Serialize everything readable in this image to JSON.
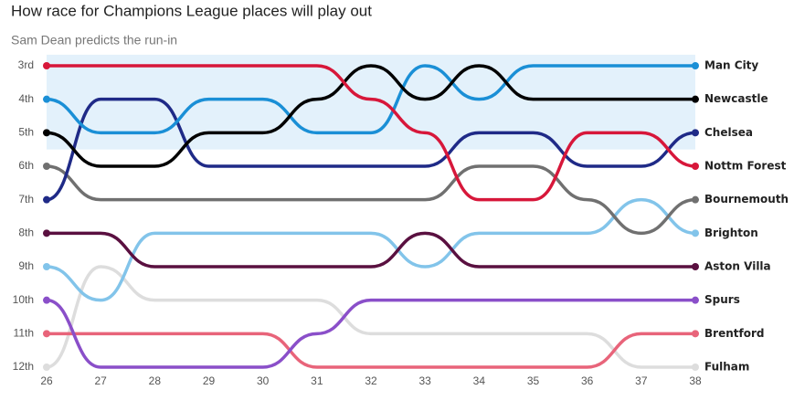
{
  "chart_data": {
    "type": "bump",
    "title": "How race for Champions League places will play out",
    "subtitle": "Sam Dean predicts the run-in",
    "x": [
      26,
      27,
      28,
      29,
      30,
      31,
      32,
      33,
      34,
      35,
      36,
      37,
      38
    ],
    "xlim": [
      26,
      38
    ],
    "xticks": [
      26,
      27,
      28,
      29,
      30,
      31,
      32,
      33,
      34,
      35,
      36,
      37,
      38
    ],
    "ylim": [
      12,
      3
    ],
    "yticks": [
      {
        "value": 3,
        "label": "3rd"
      },
      {
        "value": 4,
        "label": "4th"
      },
      {
        "value": 5,
        "label": "5th"
      },
      {
        "value": 6,
        "label": "6th"
      },
      {
        "value": 7,
        "label": "7th"
      },
      {
        "value": 8,
        "label": "8th"
      },
      {
        "value": 9,
        "label": "9th"
      },
      {
        "value": 10,
        "label": "10th"
      },
      {
        "value": 11,
        "label": "11th"
      },
      {
        "value": 12,
        "label": "12th"
      }
    ],
    "shaded_range": [
      3,
      5
    ],
    "series": [
      {
        "name": "Fulham",
        "color": "#dddddd",
        "values": [
          12,
          9,
          10,
          10,
          10,
          10,
          11,
          11,
          11,
          11,
          11,
          12,
          12
        ]
      },
      {
        "name": "Brentford",
        "color": "#e8647a",
        "values": [
          11,
          11,
          11,
          11,
          11,
          12,
          12,
          12,
          12,
          12,
          12,
          11,
          11
        ]
      },
      {
        "name": "Spurs",
        "color": "#8a4fc9",
        "values": [
          10,
          12,
          12,
          12,
          12,
          11,
          10,
          10,
          10,
          10,
          10,
          10,
          10
        ]
      },
      {
        "name": "Brighton",
        "color": "#82c4ea",
        "values": [
          9,
          10,
          8,
          8,
          8,
          8,
          8,
          9,
          8,
          8,
          8,
          7,
          8
        ]
      },
      {
        "name": "Aston Villa",
        "color": "#5a1040",
        "values": [
          8,
          8,
          9,
          9,
          9,
          9,
          9,
          8,
          9,
          9,
          9,
          9,
          9
        ]
      },
      {
        "name": "Bournemouth",
        "color": "#707070",
        "values": [
          6,
          7,
          7,
          7,
          7,
          7,
          7,
          7,
          6,
          6,
          7,
          8,
          7
        ]
      },
      {
        "name": "Chelsea",
        "color": "#1f2a87",
        "values": [
          7,
          4,
          4,
          6,
          6,
          6,
          6,
          6,
          5,
          5,
          6,
          6,
          5
        ]
      },
      {
        "name": "Man City",
        "color": "#1a8fd6",
        "values": [
          4,
          5,
          5,
          4,
          4,
          5,
          5,
          3,
          4,
          3,
          3,
          3,
          3
        ]
      },
      {
        "name": "Newcastle",
        "color": "#000000",
        "values": [
          5,
          6,
          6,
          5,
          5,
          4,
          3,
          4,
          3,
          4,
          4,
          4,
          4
        ]
      },
      {
        "name": "Nottm Forest",
        "color": "#d7173a",
        "values": [
          3,
          3,
          3,
          3,
          3,
          3,
          4,
          5,
          7,
          7,
          5,
          5,
          6
        ]
      }
    ]
  }
}
